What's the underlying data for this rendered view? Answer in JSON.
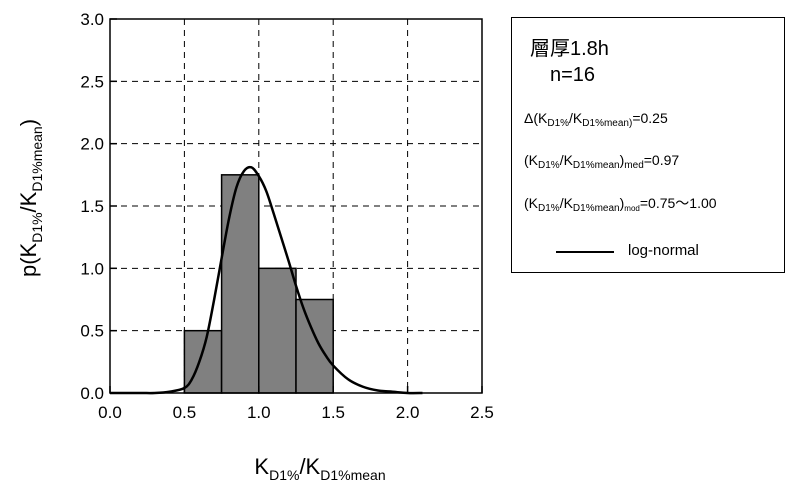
{
  "chart_data": {
    "type": "bar",
    "xlabel": {
      "base": "K",
      "sub1": "D1%",
      "mid": "/K",
      "sub2": "D1%mean"
    },
    "ylabel": {
      "base": "p(K",
      "sub1": "D1%",
      "mid": "/K",
      "sub2": "D1%mean",
      "end": ")"
    },
    "xlim": [
      0.0,
      2.5
    ],
    "ylim": [
      0.0,
      3.0
    ],
    "x_ticks": [
      "0.0",
      "0.5",
      "1.0",
      "1.5",
      "2.0",
      "2.5"
    ],
    "y_ticks": [
      "0.0",
      "0.5",
      "1.0",
      "1.5",
      "2.0",
      "2.5",
      "3.0"
    ],
    "grid": true,
    "bins": [
      {
        "x0": 0.5,
        "x1": 0.75,
        "value": 0.5
      },
      {
        "x0": 0.75,
        "x1": 1.0,
        "value": 1.75
      },
      {
        "x0": 1.0,
        "x1": 1.25,
        "value": 1.0
      },
      {
        "x0": 1.25,
        "x1": 1.5,
        "value": 0.75
      }
    ],
    "bar_color": "#808080",
    "series": [
      {
        "name": "log-normal",
        "type": "line",
        "color": "#000000",
        "x": [
          0.0,
          0.2,
          0.3,
          0.4,
          0.5,
          0.55,
          0.6,
          0.65,
          0.7,
          0.75,
          0.8,
          0.85,
          0.9,
          0.95,
          1.0,
          1.05,
          1.1,
          1.15,
          1.2,
          1.25,
          1.3,
          1.35,
          1.4,
          1.45,
          1.5,
          1.6,
          1.7,
          1.8,
          1.9,
          2.0,
          2.1
        ],
        "y": [
          0.0,
          0.0,
          0.0,
          0.01,
          0.04,
          0.11,
          0.25,
          0.45,
          0.75,
          1.08,
          1.4,
          1.65,
          1.78,
          1.81,
          1.74,
          1.62,
          1.44,
          1.25,
          1.06,
          0.86,
          0.68,
          0.53,
          0.4,
          0.3,
          0.22,
          0.11,
          0.05,
          0.02,
          0.01,
          0.0,
          0.0
        ]
      }
    ]
  },
  "legend": {
    "title": "層厚1.8h",
    "n": "n=16",
    "line1": {
      "prefix": "Δ(K",
      "s1": "D1%",
      "mid": "/K",
      "s2": "D1%mean)",
      "value": "=0.25"
    },
    "line2": {
      "prefix": "(K",
      "s1": "D1%",
      "mid": "/K",
      "s2": "D1%mean",
      "close": ")",
      "s3": "med",
      "value": "=0.97"
    },
    "line3": {
      "prefix": "(K",
      "s1": "D1%",
      "mid": "/K",
      "s2": "D1%mean",
      "close": ")",
      "s3": "mod",
      "value": "=0.75～1.00"
    },
    "entry_label": "log-normal"
  }
}
